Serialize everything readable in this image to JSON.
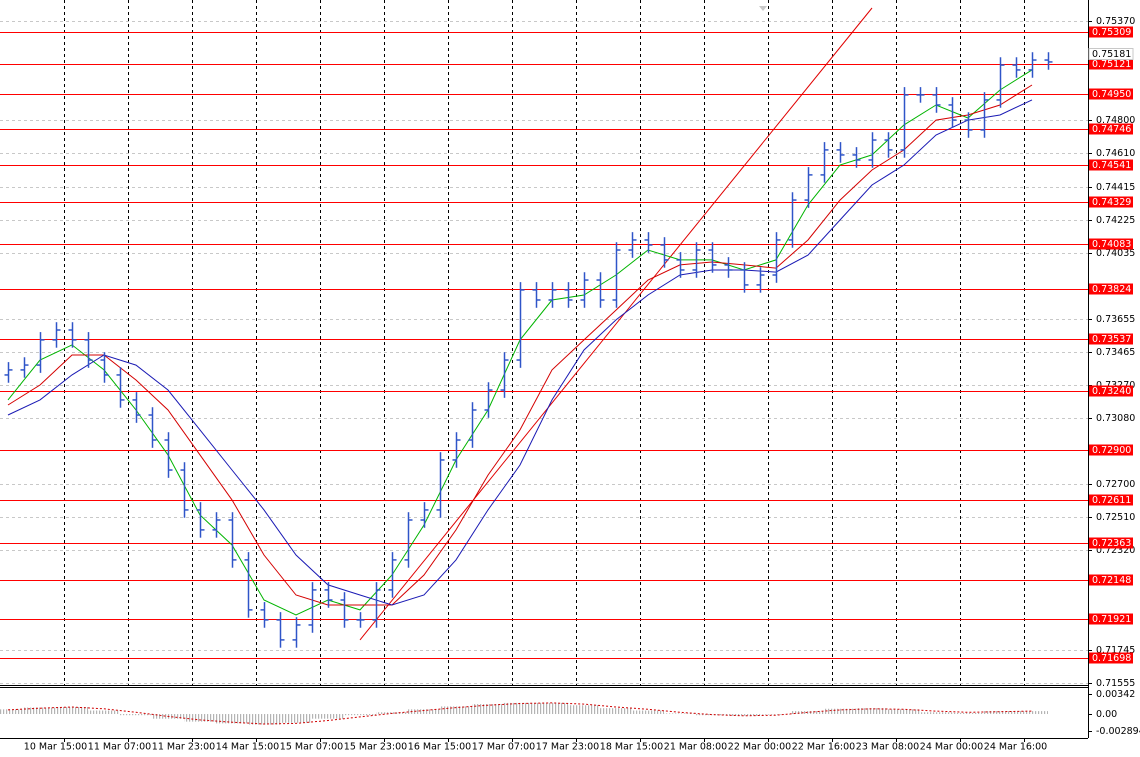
{
  "chart_data": [
    {
      "type": "ohlc",
      "color": "#2f55c8",
      "grid": true,
      "xlim": [
        -0.5,
        67.5
      ],
      "ylim": [
        0.71543,
        0.75491
      ],
      "xticks": [
        {
          "value": 3.5,
          "label": "10 Mar 15:00"
        },
        {
          "value": 7.5,
          "label": "11 Mar 07:00"
        },
        {
          "value": 11.5,
          "label": "11 Mar 23:00"
        },
        {
          "value": 15.5,
          "label": "14 Mar 15:00"
        },
        {
          "value": 19.5,
          "label": "15 Mar 07:00"
        },
        {
          "value": 23.5,
          "label": "15 Mar 23:00"
        },
        {
          "value": 27.5,
          "label": "16 Mar 15:00"
        },
        {
          "value": 31.5,
          "label": "17 Mar 07:00"
        },
        {
          "value": 35.5,
          "label": "17 Mar 23:00"
        },
        {
          "value": 39.5,
          "label": "18 Mar 15:00"
        },
        {
          "value": 43.5,
          "label": "21 Mar 08:00"
        },
        {
          "value": 47.5,
          "label": "22 Mar 00:00"
        },
        {
          "value": 51.5,
          "label": "22 Mar 16:00"
        },
        {
          "value": 55.5,
          "label": "23 Mar 08:00"
        },
        {
          "value": 59.5,
          "label": "24 Mar 00:00"
        },
        {
          "value": 63.5,
          "label": "24 Mar 16:00"
        }
      ],
      "yticks": [
        {
          "value": 0.7537,
          "label": "0.75370"
        },
        {
          "value": 0.748,
          "label": "0.74800"
        },
        {
          "value": 0.7461,
          "label": "0.74610"
        },
        0.74415,
        0.74225,
        0.74035,
        0.73655,
        0.73465,
        {
          "value": 0.7327,
          "label": "0.73270"
        },
        {
          "value": 0.7308,
          "label": "0.73080"
        },
        {
          "value": 0.727,
          "label": "0.72700"
        },
        {
          "value": 0.7251,
          "label": "0.72510"
        },
        {
          "value": 0.7232,
          "label": "0.72320"
        },
        0.71745,
        0.71555
      ],
      "open": [
        0.7333,
        0.73359,
        0.73387,
        0.73532,
        0.73589,
        0.73532,
        0.73416,
        0.7333,
        0.73186,
        0.73099,
        0.72955,
        0.72782,
        0.72552,
        0.72437,
        0.72494,
        0.72264,
        0.71976,
        0.71918,
        0.71803,
        0.71889,
        0.72091,
        0.72033,
        0.71918,
        0.71918,
        0.72091,
        0.72264,
        0.72494,
        0.72552,
        0.7284,
        0.72955,
        0.73128,
        0.73243,
        0.73416,
        0.7382,
        0.73762,
        0.7382,
        0.73762,
        0.73877,
        0.73762,
        0.7405,
        0.74108,
        0.74079,
        0.73993,
        0.73935,
        0.7405,
        0.73964,
        0.73935,
        0.73849,
        0.73906,
        0.74108,
        0.74338,
        0.74483,
        0.74627,
        0.74598,
        0.74569,
        0.74684,
        0.74627,
        0.74944,
        0.74944,
        0.74886,
        0.74799,
        0.74742,
        0.74915,
        0.75116,
        0.75088,
        0.75145
      ],
      "high": [
        0.73404,
        0.73432,
        0.73577,
        0.73634,
        0.73634,
        0.73577,
        0.73461,
        0.73375,
        0.73231,
        0.73144,
        0.73,
        0.72827,
        0.72597,
        0.72539,
        0.72539,
        0.72309,
        0.72021,
        0.71963,
        0.71934,
        0.72136,
        0.72136,
        0.72078,
        0.71963,
        0.72136,
        0.72309,
        0.72539,
        0.72597,
        0.72885,
        0.73,
        0.73173,
        0.73288,
        0.73461,
        0.73865,
        0.73865,
        0.73865,
        0.73865,
        0.73922,
        0.73922,
        0.74095,
        0.74153,
        0.74153,
        0.74124,
        0.74038,
        0.74095,
        0.74095,
        0.74009,
        0.7398,
        0.73951,
        0.74153,
        0.74383,
        0.74528,
        0.74672,
        0.74672,
        0.74643,
        0.74729,
        0.74729,
        0.74989,
        0.74989,
        0.74989,
        0.74931,
        0.74844,
        0.7496,
        0.75161,
        0.75161,
        0.7519,
        0.7519
      ],
      "low": [
        0.73285,
        0.73314,
        0.73342,
        0.73487,
        0.73487,
        0.73371,
        0.73285,
        0.73141,
        0.73054,
        0.7291,
        0.72737,
        0.72507,
        0.72392,
        0.72392,
        0.72219,
        0.71931,
        0.71873,
        0.71758,
        0.71758,
        0.71844,
        0.71988,
        0.71873,
        0.71873,
        0.71873,
        0.72046,
        0.72219,
        0.72449,
        0.72507,
        0.72795,
        0.7291,
        0.73083,
        0.73198,
        0.73371,
        0.73717,
        0.73717,
        0.73717,
        0.73717,
        0.73717,
        0.73717,
        0.74005,
        0.74034,
        0.73948,
        0.7389,
        0.7389,
        0.73919,
        0.7389,
        0.73804,
        0.73804,
        0.73861,
        0.74063,
        0.74293,
        0.74438,
        0.74553,
        0.74524,
        0.74524,
        0.74582,
        0.74582,
        0.74899,
        0.74841,
        0.74754,
        0.74697,
        0.74697,
        0.7487,
        0.75043,
        0.75043,
        0.75089
      ],
      "close": [
        0.73359,
        0.73387,
        0.73532,
        0.73589,
        0.73532,
        0.73416,
        0.7333,
        0.73186,
        0.73099,
        0.72955,
        0.72782,
        0.72552,
        0.72437,
        0.72494,
        0.72264,
        0.71976,
        0.71918,
        0.71803,
        0.71889,
        0.72091,
        0.72033,
        0.71918,
        0.71918,
        0.72091,
        0.72264,
        0.72494,
        0.72552,
        0.7284,
        0.72955,
        0.73128,
        0.73243,
        0.73416,
        0.7382,
        0.73762,
        0.7382,
        0.73762,
        0.73877,
        0.73762,
        0.7405,
        0.74108,
        0.74079,
        0.73993,
        0.73935,
        0.7405,
        0.73964,
        0.73935,
        0.73849,
        0.73906,
        0.74108,
        0.74338,
        0.74483,
        0.74627,
        0.74598,
        0.74569,
        0.74684,
        0.74627,
        0.74944,
        0.74944,
        0.74886,
        0.74799,
        0.74742,
        0.74915,
        0.75116,
        0.75088,
        0.75145,
        0.75134
      ],
      "series": [
        {
          "color": "#00b400",
          "x": [
            0,
            2,
            4,
            6,
            8,
            10,
            12,
            14,
            16,
            18,
            20,
            22,
            24,
            26,
            28,
            30,
            32,
            34,
            36,
            38,
            40,
            42,
            44,
            46,
            48,
            50,
            52,
            54,
            56,
            58,
            60,
            62,
            64
          ],
          "values": [
            0.73186,
            0.73416,
            0.73503,
            0.73359,
            0.73128,
            0.72869,
            0.72523,
            0.7235,
            0.72033,
            0.71947,
            0.72033,
            0.71976,
            0.72177,
            0.72465,
            0.7284,
            0.73128,
            0.73532,
            0.73762,
            0.73791,
            0.73906,
            0.7405,
            0.73993,
            0.73993,
            0.73935,
            0.73993,
            0.7431,
            0.7454,
            0.74598,
            0.74771,
            0.74886,
            0.74811,
            0.74972,
            0.75088
          ]
        },
        {
          "color": "#d40000",
          "x": [
            0,
            2,
            4,
            6,
            8,
            10,
            12,
            14,
            16,
            18,
            20,
            22,
            24,
            26,
            28,
            30,
            32,
            34,
            36,
            38,
            40,
            42,
            44,
            46,
            48,
            50,
            52,
            54,
            56,
            58,
            60,
            62,
            64
          ],
          "values": [
            0.73157,
            0.73272,
            0.73445,
            0.73445,
            0.73301,
            0.73128,
            0.72869,
            0.7261,
            0.72292,
            0.72062,
            0.72004,
            0.72004,
            0.72004,
            0.72177,
            0.72437,
            0.72753,
            0.73013,
            0.73359,
            0.73532,
            0.73704,
            0.73877,
            0.73964,
            0.73981,
            0.73964,
            0.73946,
            0.74108,
            0.74338,
            0.74511,
            0.74627,
            0.74799,
            0.74828,
            0.74886,
            0.75001
          ]
        },
        {
          "color": "#1a1ab4",
          "x": [
            0,
            2,
            4,
            6,
            8,
            10,
            12,
            14,
            16,
            18,
            20,
            22,
            24,
            26,
            28,
            30,
            32,
            34,
            36,
            38,
            40,
            42,
            44,
            46,
            48,
            50,
            52,
            54,
            56,
            58,
            60,
            62,
            64
          ],
          "values": [
            0.73099,
            0.73186,
            0.7333,
            0.73445,
            0.73387,
            0.73243,
            0.73013,
            0.72782,
            0.72552,
            0.72292,
            0.7212,
            0.72062,
            0.72004,
            0.72062,
            0.72264,
            0.72552,
            0.72811,
            0.73186,
            0.73474,
            0.73647,
            0.73791,
            0.73906,
            0.73935,
            0.73935,
            0.73923,
            0.74021,
            0.74223,
            0.74425,
            0.7454,
            0.74713,
            0.74799,
            0.74828,
            0.74915
          ]
        }
      ],
      "trendline": {
        "color": "#e00000",
        "x": [
          22,
          54
        ],
        "values": [
          0.71803,
          0.75445
        ]
      },
      "levels": {
        "color": "#ff0000",
        "values": [
          0.75309,
          0.75121,
          {
            "value": 0.7495,
            "label": "0.74950"
          },
          0.74746,
          0.74541,
          0.74329,
          0.74083,
          0.73824,
          0.73537,
          {
            "value": 0.7324,
            "label": "0.73240"
          },
          {
            "value": 0.729,
            "label": "0.72900"
          },
          0.72611,
          0.72363,
          0.72148,
          0.71921,
          0.71698
        ]
      },
      "last_price": 0.75181
    },
    {
      "type": "oscillator",
      "color": "#b4b4b4",
      "xlim": [
        -0.5,
        67.5
      ],
      "ylim": [
        -0.00393,
        0.00445
      ],
      "yticks": [
        0.00342,
        {
          "value": 0,
          "label": "0.00"
        },
        -0.002894
      ],
      "x": [
        0,
        2,
        4,
        6,
        8,
        10,
        12,
        14,
        16,
        18,
        20,
        22,
        24,
        26,
        28,
        30,
        32,
        34,
        36,
        38,
        40,
        42,
        44,
        46,
        48,
        50,
        52,
        54,
        56,
        58,
        60,
        62,
        64
      ],
      "values": [
        0.0008,
        0.0011,
        0.0012,
        0.0006,
        -0.0002,
        -0.0008,
        -0.0013,
        -0.0016,
        -0.0018,
        -0.0015,
        -0.0008,
        -0.0002,
        0.0003,
        0.0008,
        0.0013,
        0.0017,
        0.0019,
        0.0019,
        0.0015,
        0.001,
        0.0006,
        0.0001,
        -0.0002,
        -0.0003,
        -0.0001,
        0.0005,
        0.0009,
        0.001,
        0.0008,
        0.0003,
        0.0002,
        0.0005,
        0.0005
      ],
      "signal": {
        "color": "#d00000",
        "values": [
          0.0007,
          0.001,
          0.0012,
          0.0009,
          0.0003,
          -0.0004,
          -0.001,
          -0.0014,
          -0.0017,
          -0.0016,
          -0.0011,
          -0.0005,
          0.0001,
          0.0006,
          0.0011,
          0.0015,
          0.0018,
          0.0019,
          0.0017,
          0.0012,
          0.0008,
          0.0003,
          -0.0001,
          -0.0003,
          -0.0002,
          0.0003,
          0.0007,
          0.0009,
          0.0008,
          0.0005,
          0.0003,
          0.0004,
          0.0005
        ]
      }
    }
  ]
}
